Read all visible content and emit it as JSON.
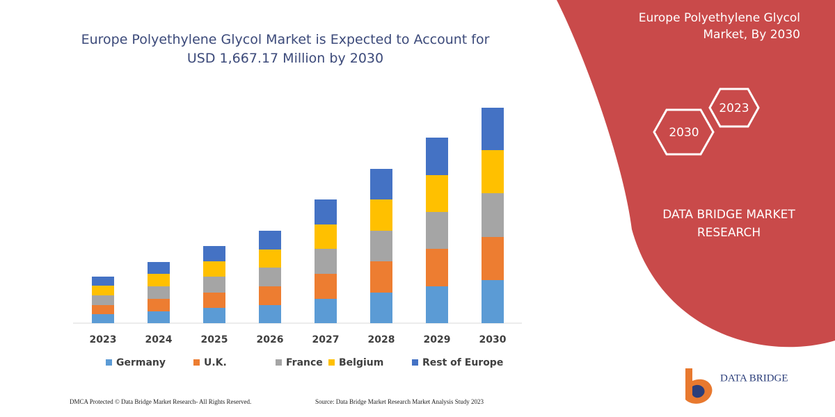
{
  "chart_data": {
    "type": "stacked_bar",
    "title": "Europe Polyethylene Glycol Market is Expected to Account for USD 1,667.17 Million by 2030",
    "categories": [
      "2023",
      "2024",
      "2025",
      "2026",
      "2027",
      "2028",
      "2029",
      "2030"
    ],
    "series": [
      {
        "name": "Germany",
        "color": "#5b9bd5",
        "values": [
          13,
          17,
          22,
          26,
          35,
          44,
          53,
          62
        ]
      },
      {
        "name": "U.K.",
        "color": "#ed7d31",
        "values": [
          13,
          18,
          22,
          27,
          36,
          45,
          54,
          62
        ]
      },
      {
        "name": "France",
        "color": "#a5a5a5",
        "values": [
          14,
          18,
          23,
          27,
          36,
          44,
          53,
          63
        ]
      },
      {
        "name": "Belgium",
        "color": "#ffc000",
        "values": [
          14,
          18,
          22,
          26,
          35,
          45,
          53,
          62
        ]
      },
      {
        "name": "Rest of Europe",
        "color": "#4472c4",
        "values": [
          13,
          17,
          22,
          27,
          36,
          44,
          54,
          61
        ]
      }
    ]
  },
  "side_panel": {
    "title": "Europe Polyethylene Glycol Market, By 2030",
    "hexagons": [
      "2023",
      "2030"
    ],
    "brand": "DATA BRIDGE MARKET RESEARCH"
  },
  "footer": {
    "copyright": "DMCA Protected © Data Bridge Market Research- All Rights Reserved.",
    "source": "Source: Data Bridge Market Research Market Analysis Study 2023"
  },
  "logo": {
    "name": "DATA BRIDGE"
  }
}
